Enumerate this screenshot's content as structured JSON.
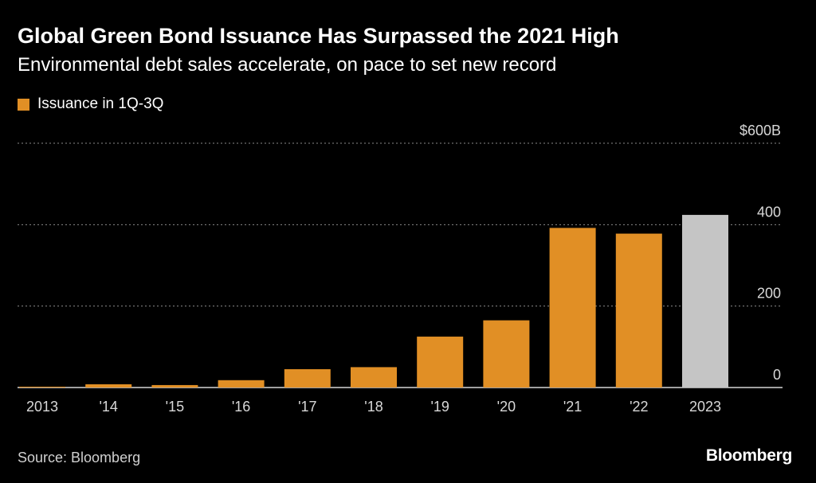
{
  "header": {
    "title": "Global Green Bond Issuance Has Surpassed the 2021 High",
    "subtitle": "Environmental debt sales accelerate, on pace to set new record"
  },
  "legend": {
    "label": "Issuance in 1Q-3Q"
  },
  "footer": {
    "source": "Source: Bloomberg",
    "brand": "Bloomberg"
  },
  "colors": {
    "bar": "#E18F25",
    "highlight": "#C5C5C5",
    "grid": "#8a8a8a",
    "axis": "#ffffff"
  },
  "chart_data": {
    "type": "bar",
    "title": "Global Green Bond Issuance Has Surpassed the 2021 High",
    "subtitle": "Environmental debt sales accelerate, on pace to set new record",
    "series": [
      {
        "name": "Issuance in 1Q-3Q",
        "values": [
          2,
          8,
          6,
          18,
          45,
          50,
          125,
          165,
          392,
          378,
          424
        ]
      }
    ],
    "categories": [
      "2013",
      "'14",
      "'15",
      "'16",
      "'17",
      "'18",
      "'19",
      "'20",
      "'21",
      "'22",
      "2023"
    ],
    "highlight_index": 10,
    "ylim": [
      0,
      600
    ],
    "yticks": [
      0,
      200,
      400,
      600
    ],
    "ytick_labels": [
      "0",
      "200",
      "400",
      "$600B"
    ],
    "xlabel": "",
    "ylabel": "",
    "grid": true
  }
}
